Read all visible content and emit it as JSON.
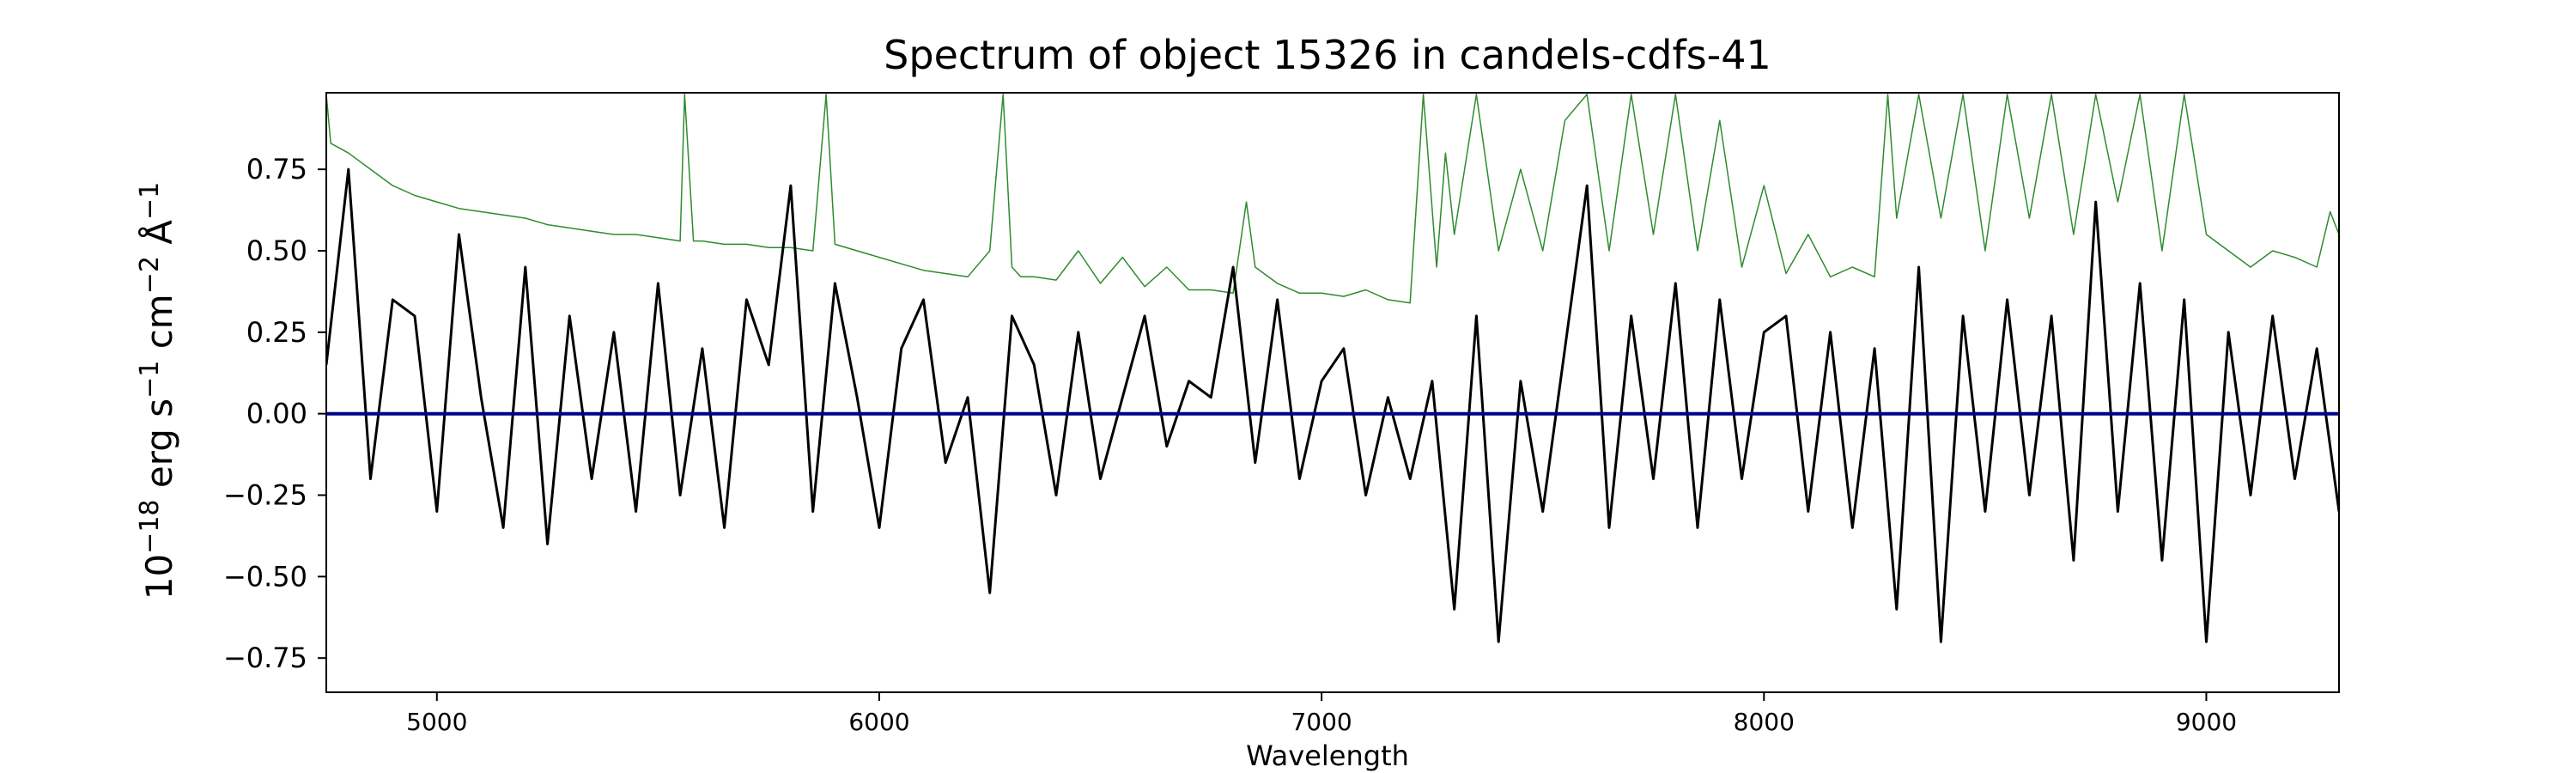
{
  "chart_data": {
    "type": "line",
    "title": "Spectrum of object 15326 in candels-cdfs-41",
    "xlabel": "Wavelength",
    "ylabel_parts": {
      "base": "10",
      "exp1": "−18",
      "unit1": " erg s",
      "exp2": "−1",
      "unit2": " cm",
      "exp3": "−2",
      "unit3": " Å",
      "exp4": "−1"
    },
    "xlim": [
      4750,
      9300
    ],
    "ylim": [
      -0.855,
      0.985
    ],
    "xticks": [
      5000,
      6000,
      7000,
      8000,
      9000
    ],
    "xtick_labels": [
      "5000",
      "6000",
      "7000",
      "8000",
      "9000"
    ],
    "yticks": [
      -0.75,
      -0.5,
      -0.25,
      0.0,
      0.25,
      0.5,
      0.75
    ],
    "ytick_labels": [
      "−0.75",
      "−0.50",
      "−0.25",
      "0.00",
      "0.25",
      "0.50",
      "0.75"
    ],
    "grid": false,
    "legend": "none",
    "series": [
      {
        "role": "flux",
        "color": "#000000",
        "x": [
          4750,
          4800,
          4850,
          4900,
          4950,
          5000,
          5050,
          5100,
          5150,
          5200,
          5250,
          5300,
          5350,
          5400,
          5450,
          5500,
          5550,
          5600,
          5650,
          5700,
          5750,
          5800,
          5850,
          5900,
          5950,
          6000,
          6050,
          6100,
          6150,
          6200,
          6250,
          6300,
          6350,
          6400,
          6450,
          6500,
          6550,
          6600,
          6650,
          6700,
          6750,
          6800,
          6850,
          6900,
          6950,
          7000,
          7050,
          7100,
          7150,
          7200,
          7250,
          7300,
          7350,
          7400,
          7450,
          7500,
          7550,
          7600,
          7650,
          7700,
          7750,
          7800,
          7850,
          7900,
          7950,
          8000,
          8050,
          8100,
          8150,
          8200,
          8250,
          8300,
          8350,
          8400,
          8450,
          8500,
          8550,
          8600,
          8650,
          8700,
          8750,
          8800,
          8850,
          8900,
          8950,
          9000,
          9050,
          9100,
          9150,
          9200,
          9250,
          9300
        ],
        "y": [
          0.15,
          0.75,
          -0.2,
          0.35,
          0.3,
          -0.3,
          0.55,
          0.05,
          -0.35,
          0.45,
          -0.4,
          0.3,
          -0.2,
          0.25,
          -0.3,
          0.4,
          -0.25,
          0.2,
          -0.35,
          0.35,
          0.15,
          0.7,
          -0.3,
          0.4,
          0.05,
          -0.35,
          0.2,
          0.35,
          -0.15,
          0.05,
          -0.55,
          0.3,
          0.15,
          -0.25,
          0.25,
          -0.2,
          0.05,
          0.3,
          -0.1,
          0.1,
          0.05,
          0.45,
          -0.15,
          0.35,
          -0.2,
          0.1,
          0.2,
          -0.25,
          0.05,
          -0.2,
          0.1,
          -0.6,
          0.3,
          -0.7,
          0.1,
          -0.3,
          0.2,
          0.7,
          -0.35,
          0.3,
          -0.2,
          0.4,
          -0.35,
          0.35,
          -0.2,
          0.25,
          0.3,
          -0.3,
          0.25,
          -0.35,
          0.2,
          -0.6,
          0.45,
          -0.7,
          0.3,
          -0.3,
          0.35,
          -0.25,
          0.3,
          -0.45,
          0.65,
          -0.3,
          0.4,
          -0.45,
          0.35,
          -0.7,
          0.25,
          -0.25,
          0.3,
          -0.2,
          0.2,
          -0.3
        ]
      },
      {
        "role": "error",
        "color": "#2e8b2e",
        "x": [
          4750,
          4760,
          4800,
          4850,
          4900,
          4950,
          5000,
          5050,
          5100,
          5150,
          5200,
          5250,
          5300,
          5350,
          5400,
          5450,
          5500,
          5550,
          5560,
          5580,
          5600,
          5650,
          5700,
          5750,
          5800,
          5850,
          5880,
          5900,
          5950,
          6000,
          6050,
          6100,
          6150,
          6200,
          6250,
          6280,
          6300,
          6320,
          6350,
          6400,
          6450,
          6500,
          6550,
          6600,
          6650,
          6700,
          6750,
          6800,
          6830,
          6850,
          6900,
          6950,
          7000,
          7050,
          7100,
          7150,
          7200,
          7230,
          7260,
          7280,
          7300,
          7350,
          7400,
          7450,
          7500,
          7550,
          7600,
          7650,
          7700,
          7750,
          7800,
          7850,
          7900,
          7950,
          8000,
          8050,
          8100,
          8150,
          8200,
          8250,
          8280,
          8300,
          8350,
          8400,
          8450,
          8500,
          8550,
          8600,
          8650,
          8700,
          8750,
          8800,
          8850,
          8900,
          8950,
          9000,
          9050,
          9100,
          9150,
          9200,
          9250,
          9280,
          9300
        ],
        "y": [
          0.98,
          0.83,
          0.8,
          0.75,
          0.7,
          0.67,
          0.65,
          0.63,
          0.62,
          0.61,
          0.6,
          0.58,
          0.57,
          0.56,
          0.55,
          0.55,
          0.54,
          0.53,
          0.98,
          0.53,
          0.53,
          0.52,
          0.52,
          0.51,
          0.51,
          0.5,
          0.98,
          0.52,
          0.5,
          0.48,
          0.46,
          0.44,
          0.43,
          0.42,
          0.5,
          0.98,
          0.45,
          0.42,
          0.42,
          0.41,
          0.5,
          0.4,
          0.48,
          0.39,
          0.45,
          0.38,
          0.38,
          0.37,
          0.65,
          0.45,
          0.4,
          0.37,
          0.37,
          0.36,
          0.38,
          0.35,
          0.34,
          0.98,
          0.45,
          0.8,
          0.55,
          0.98,
          0.5,
          0.75,
          0.5,
          0.9,
          0.98,
          0.5,
          0.98,
          0.55,
          0.98,
          0.5,
          0.9,
          0.45,
          0.7,
          0.43,
          0.55,
          0.42,
          0.45,
          0.42,
          0.98,
          0.6,
          0.98,
          0.6,
          0.98,
          0.5,
          0.98,
          0.6,
          0.98,
          0.55,
          0.98,
          0.65,
          0.98,
          0.5,
          0.98,
          0.55,
          0.5,
          0.45,
          0.5,
          0.48,
          0.45,
          0.62,
          0.55
        ]
      },
      {
        "role": "zero",
        "color": "#00008b",
        "x": [
          4750,
          9300
        ],
        "y": [
          0.0,
          0.0
        ]
      }
    ]
  }
}
